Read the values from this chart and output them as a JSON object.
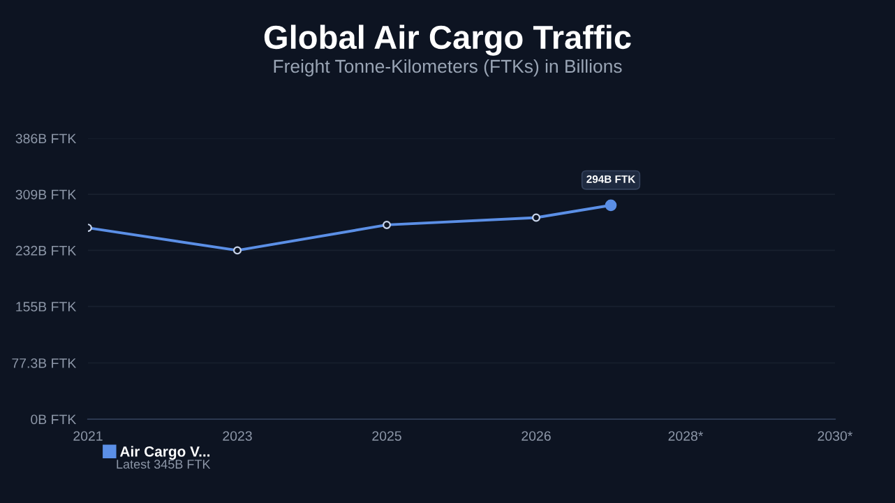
{
  "chart_data": {
    "type": "line",
    "title": "Global Air Cargo Traffic",
    "subtitle": "Freight Tonne-Kilometers (FTKs) in Billions",
    "categories": [
      "2021",
      null,
      "2023",
      null,
      "2025",
      null,
      "2026",
      null,
      "2028*",
      null,
      "2030*"
    ],
    "series": [
      {
        "name": "Air Cargo V...",
        "color": "#5b8fe6",
        "values": [
          263,
          null,
          232,
          null,
          267,
          null,
          277,
          294,
          null,
          null,
          null
        ],
        "value_labels": [
          null,
          null,
          null,
          null,
          null,
          null,
          null,
          "294B FTK",
          null,
          null,
          null
        ]
      }
    ],
    "ylim": [
      0,
      386
    ],
    "yticks": [
      {
        "value": 0,
        "label": "0B FTK"
      },
      {
        "value": 77.3,
        "label": "77.3B FTK"
      },
      {
        "value": 155,
        "label": "155B FTK"
      },
      {
        "value": 232,
        "label": "232B FTK"
      },
      {
        "value": 309,
        "label": "309B FTK"
      },
      {
        "value": 386,
        "label": "386B FTK"
      }
    ],
    "grid": "y",
    "legend": "bottom left",
    "marker": "circle",
    "line_style": "solid",
    "annotations": [
      "Latest 345B FTK"
    ]
  }
}
